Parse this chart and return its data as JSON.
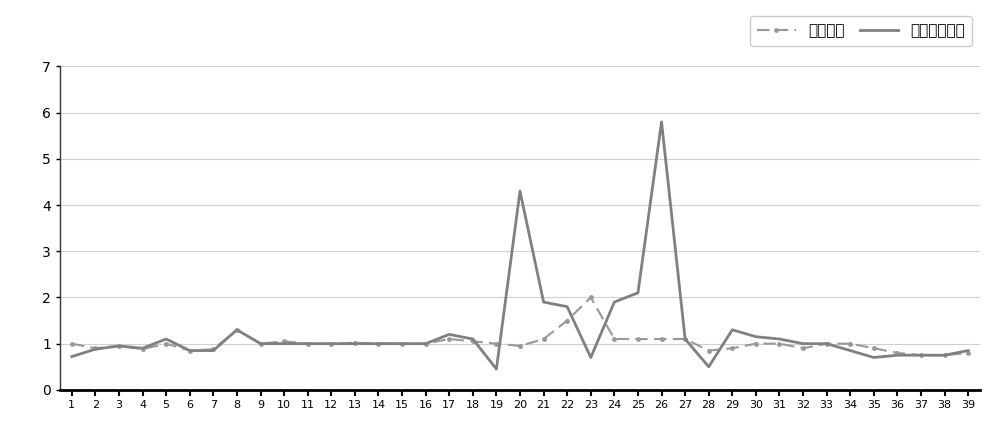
{
  "x": [
    1,
    2,
    3,
    4,
    5,
    6,
    7,
    8,
    9,
    10,
    11,
    12,
    13,
    14,
    15,
    16,
    17,
    18,
    19,
    20,
    21,
    22,
    23,
    24,
    25,
    26,
    27,
    28,
    29,
    30,
    31,
    32,
    33,
    34,
    35,
    36,
    37,
    38,
    39
  ],
  "series1_label": "传统激电",
  "series2_label": "预埋电极激电",
  "series1": [
    1.0,
    0.9,
    0.95,
    0.88,
    1.0,
    0.85,
    0.88,
    1.3,
    1.0,
    1.05,
    1.0,
    1.0,
    1.02,
    1.0,
    1.0,
    1.0,
    1.1,
    1.05,
    1.0,
    0.95,
    1.1,
    1.5,
    2.0,
    1.1,
    1.1,
    1.1,
    1.1,
    0.85,
    0.9,
    1.0,
    1.0,
    0.9,
    1.0,
    1.0,
    0.9,
    0.8,
    0.75,
    0.75,
    0.8
  ],
  "series2": [
    0.72,
    0.88,
    0.95,
    0.9,
    1.1,
    0.85,
    0.85,
    1.3,
    1.0,
    1.0,
    1.0,
    1.0,
    1.0,
    1.0,
    1.0,
    1.0,
    1.2,
    1.1,
    0.45,
    4.3,
    1.9,
    1.8,
    0.7,
    1.9,
    2.1,
    5.8,
    1.1,
    0.5,
    1.3,
    1.15,
    1.1,
    1.0,
    1.0,
    0.85,
    0.7,
    0.75,
    0.75,
    0.75,
    0.85
  ],
  "ylim": [
    0,
    7
  ],
  "yticks": [
    0,
    1,
    2,
    3,
    4,
    5,
    6,
    7
  ],
  "series1_color": "#999999",
  "series2_color": "#808080",
  "plot_bg_color": "#ffffff",
  "fig_bg_color": "#ffffff",
  "grid_color": "#d0d0d0",
  "figsize": [
    10.0,
    4.43
  ],
  "dpi": 100
}
